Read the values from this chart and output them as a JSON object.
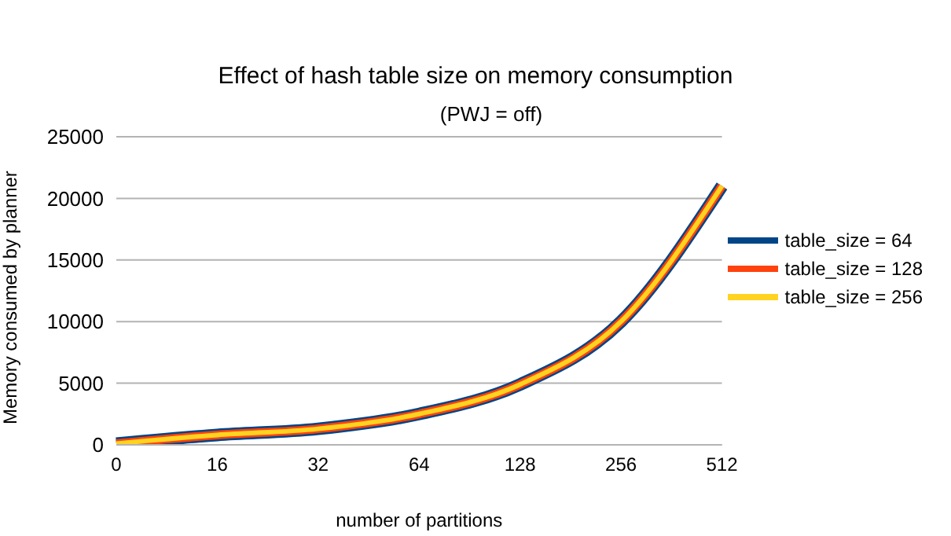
{
  "chart_data": {
    "type": "line",
    "title": "Effect of hash table size on memory consumption",
    "subtitle": "(PWJ = off)",
    "xlabel": "number of partitions",
    "ylabel": "Memory consumed by planner",
    "categories": [
      "0",
      "16",
      "32",
      "64",
      "128",
      "256",
      "512"
    ],
    "series": [
      {
        "name": "table_size = 64",
        "color": "#004586",
        "values": [
          100,
          800,
          1300,
          2500,
          4900,
          10000,
          21000
        ]
      },
      {
        "name": "table_size = 128",
        "color": "#ff420e",
        "values": [
          100,
          800,
          1300,
          2500,
          4900,
          10000,
          21000
        ]
      },
      {
        "name": "table_size = 256",
        "color": "#ffd320",
        "values": [
          100,
          800,
          1300,
          2500,
          4900,
          10000,
          21000
        ]
      }
    ],
    "ylim": [
      0,
      25000
    ],
    "yticks": [
      0,
      5000,
      10000,
      15000,
      20000,
      25000
    ],
    "grid": "y",
    "legend": "right",
    "marker": "none",
    "line_style": "solid"
  }
}
